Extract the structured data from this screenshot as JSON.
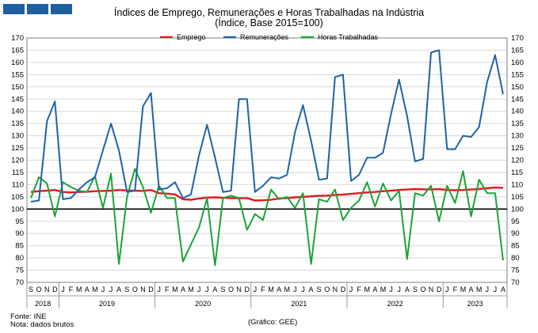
{
  "header": {
    "title": "Índices de Emprego, Remunerações e Horas Trabalhadas na Indústria",
    "subtitle": "(Índice, Base 2015=100)"
  },
  "footer": {
    "source": "Fonte: INE",
    "note": "Nota: dados brutos",
    "credit": "(Gráfico:  GEE)"
  },
  "colors": {
    "emprego": "#e8161b",
    "remuneracoes": "#1f63a8",
    "horas": "#1ca33a",
    "brand": "#1f5f9e"
  },
  "chart_data": {
    "type": "line",
    "ylim": [
      70,
      170
    ],
    "yticks": [
      70,
      75,
      80,
      85,
      90,
      95,
      100,
      105,
      110,
      115,
      120,
      125,
      130,
      135,
      140,
      145,
      150,
      155,
      160,
      165,
      170
    ],
    "reference_line": 100,
    "grid": true,
    "legend_position": "top",
    "month_labels": [
      "S",
      "O",
      "N",
      "D",
      "J",
      "F",
      "M",
      "A",
      "M",
      "J",
      "J",
      "A",
      "S",
      "O",
      "N",
      "D",
      "J",
      "F",
      "M",
      "A",
      "M",
      "J",
      "J",
      "A",
      "S",
      "O",
      "N",
      "D",
      "J",
      "F",
      "M",
      "A",
      "M",
      "J",
      "J",
      "A",
      "S",
      "O",
      "N",
      "D",
      "J",
      "F",
      "M",
      "A",
      "M",
      "J",
      "J",
      "A",
      "S",
      "O",
      "N",
      "D",
      "J",
      "F",
      "M",
      "A",
      "M",
      "J",
      "J",
      "A"
    ],
    "years": [
      {
        "label": "2018",
        "start": 0,
        "end": 4
      },
      {
        "label": "2019",
        "start": 4,
        "end": 16
      },
      {
        "label": "2020",
        "start": 16,
        "end": 28
      },
      {
        "label": "2021",
        "start": 28,
        "end": 40
      },
      {
        "label": "2022",
        "start": 40,
        "end": 52
      },
      {
        "label": "2023",
        "start": 52,
        "end": 60
      }
    ],
    "series": [
      {
        "name": "Emprego",
        "color": "#e8161b",
        "values": [
          107,
          107.3,
          107.5,
          107.8,
          107,
          106.8,
          107,
          107.1,
          107.3,
          107.4,
          107.5,
          107.8,
          107.6,
          107.5,
          107.4,
          107.8,
          106.5,
          106.3,
          106,
          104,
          103.8,
          104.3,
          104.7,
          104.8,
          104.6,
          104.5,
          104.4,
          104.5,
          103.5,
          103.6,
          103.8,
          104.3,
          104.5,
          104.8,
          105,
          105.2,
          105.4,
          105.5,
          105.8,
          105.9,
          106.2,
          106.5,
          106.8,
          107,
          107.3,
          107.5,
          107.8,
          108,
          108.2,
          108.1,
          108,
          108.2,
          107.8,
          107.7,
          107.8,
          108,
          108.2,
          108.5,
          108.8,
          108.7
        ]
      },
      {
        "name": "Remunerações",
        "color": "#1f63a8",
        "values": [
          103,
          103.5,
          136,
          144,
          104,
          104.5,
          108,
          111,
          113,
          124,
          135,
          124,
          107,
          107.5,
          142,
          147.5,
          108,
          108.5,
          111,
          104.5,
          106,
          122,
          134.5,
          121,
          107,
          107.5,
          145,
          145,
          107,
          109.5,
          113,
          112.5,
          114,
          131.5,
          142.5,
          128,
          112,
          112.5,
          154,
          155,
          111.5,
          114,
          121,
          121,
          123,
          139,
          153,
          138,
          119.5,
          120.5,
          164,
          165,
          124.5,
          124.5,
          130,
          129.5,
          133.5,
          152,
          163,
          147
        ]
      },
      {
        "name": "Horas Trabalhadas",
        "color": "#1ca33a",
        "values": [
          104.5,
          113,
          110.5,
          97,
          111,
          109,
          107.5,
          107,
          113.5,
          100.5,
          114.5,
          77.5,
          105,
          116.5,
          109,
          98.5,
          109.5,
          104.5,
          104.5,
          78.5,
          85.5,
          92.5,
          104.5,
          77,
          104.5,
          105.5,
          104.5,
          91.5,
          98,
          95.5,
          108,
          104,
          105,
          100.5,
          106.5,
          77.5,
          104,
          103,
          108,
          95.5,
          100.5,
          103.5,
          111,
          101,
          110.5,
          103.5,
          107.5,
          79.5,
          106.5,
          105.5,
          109.5,
          95,
          109.5,
          102.5,
          115.5,
          97,
          112,
          106.5,
          106.5,
          79
        ]
      }
    ]
  }
}
